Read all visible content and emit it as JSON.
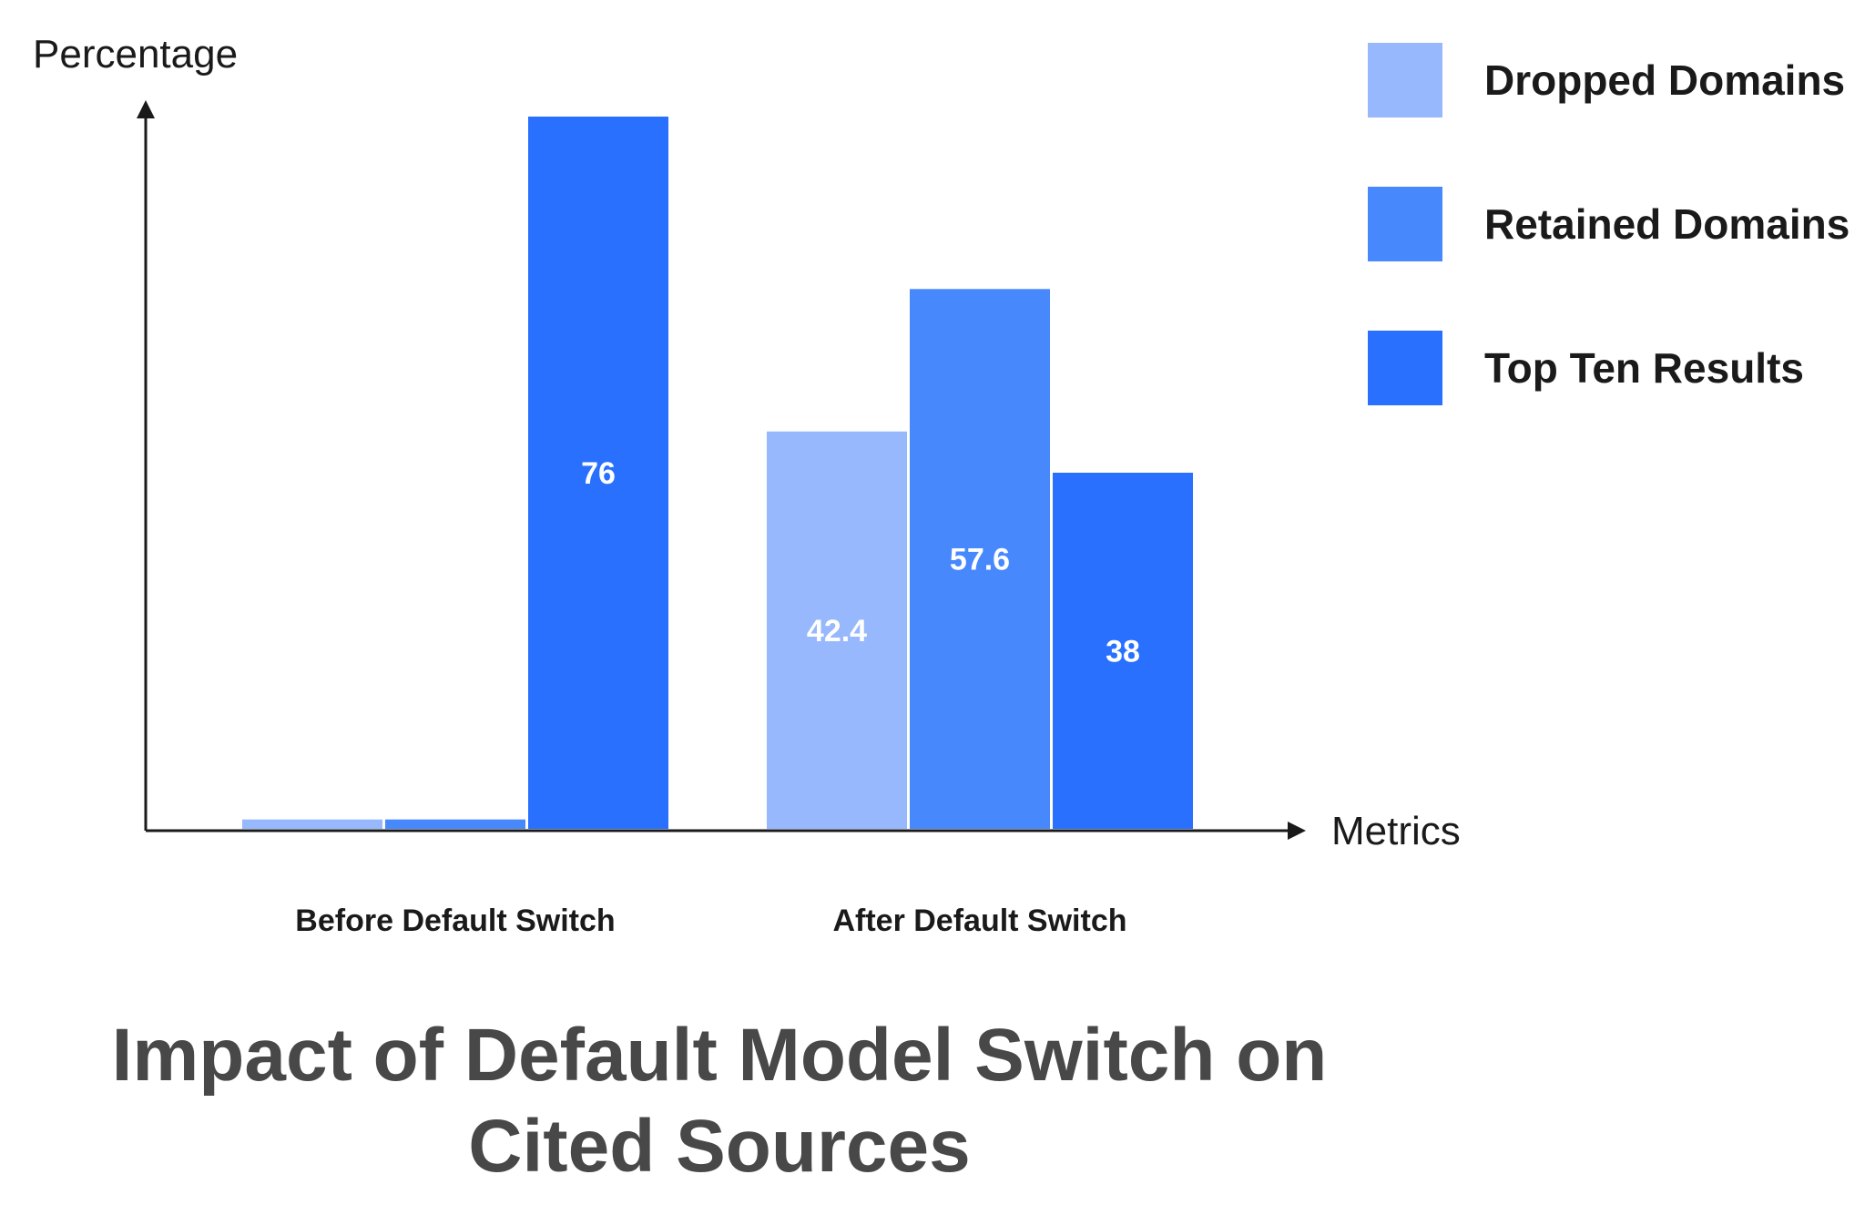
{
  "chart_data": {
    "type": "bar",
    "title": "Impact of Default Model Switch on Cited Sources",
    "title_lines": [
      "Impact of Default Model Switch on",
      "Cited Sources"
    ],
    "xlabel": "Metrics",
    "ylabel": "Percentage",
    "categories": [
      "Before Default Switch",
      "After Default Switch"
    ],
    "series": [
      {
        "name": "Dropped Domains",
        "color": "#97b8fd",
        "values": [
          1,
          42.4
        ],
        "labels": [
          "",
          "42.4"
        ]
      },
      {
        "name": "Retained Domains",
        "color": "#4788fd",
        "values": [
          1,
          57.6
        ],
        "labels": [
          "",
          "57.6"
        ]
      },
      {
        "name": "Top Ten Results",
        "color": "#2970fe",
        "values": [
          76,
          38
        ],
        "labels": [
          "76",
          "38"
        ]
      }
    ],
    "ylim": [
      0,
      76
    ],
    "grid": false,
    "legend": "top-right"
  }
}
